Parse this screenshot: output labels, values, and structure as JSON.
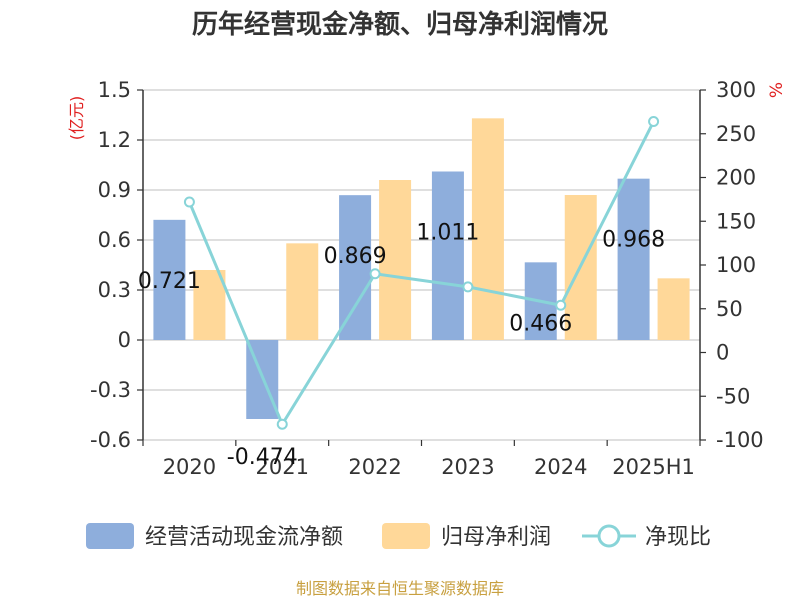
{
  "chart_data": {
    "type": "bar+line",
    "title": "历年经营现金净额、归母净利润情况",
    "categories": [
      "2020",
      "2021",
      "2022",
      "2023",
      "2024",
      "2025H1"
    ],
    "series": [
      {
        "name": "经营活动现金流净额",
        "type": "bar",
        "axis": "left",
        "color": "#8eaedc",
        "values": [
          0.721,
          -0.474,
          0.869,
          1.011,
          0.466,
          0.968
        ],
        "labels": [
          "0.721",
          "-0.474",
          "0.869",
          "1.011",
          "0.466",
          "0.968"
        ]
      },
      {
        "name": "归母净利润",
        "type": "bar",
        "axis": "left",
        "color": "#ffd899",
        "values": [
          0.42,
          0.58,
          0.96,
          1.33,
          0.87,
          0.37
        ]
      },
      {
        "name": "净现比",
        "type": "line",
        "axis": "right",
        "color": "#88d4d8",
        "values": [
          172,
          -82,
          90,
          75,
          54,
          264
        ]
      }
    ],
    "y_left": {
      "unit": "(亿元)",
      "ticks": [
        "1.5",
        "1.2",
        "0.9",
        "0.6",
        "0.3",
        "0",
        "-0.3",
        "-0.6"
      ],
      "range": [
        -0.6,
        1.5
      ]
    },
    "y_right": {
      "unit": "%",
      "ticks": [
        "300",
        "250",
        "200",
        "150",
        "100",
        "50",
        "0",
        "-50",
        "-100"
      ],
      "range": [
        -100,
        300
      ]
    },
    "legend_position": "bottom",
    "source": "制图数据来自恒生聚源数据库"
  }
}
